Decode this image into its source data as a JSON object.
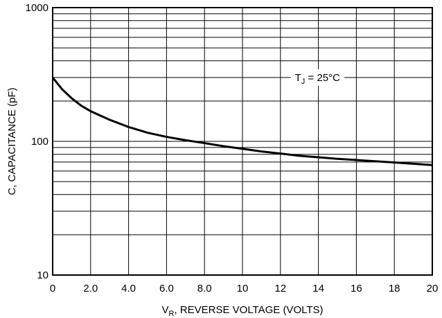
{
  "chart_data": {
    "type": "line",
    "title": "",
    "xlabel_main": "V",
    "xlabel_sub": "R",
    "xlabel_rest": ", REVERSE VOLTAGE (VOLTS)",
    "ylabel": "C, CAPACITANCE (pF)",
    "xlim": [
      0,
      20
    ],
    "ylim": [
      10,
      1000
    ],
    "yscale": "log",
    "grid": true,
    "x_ticks": [
      0,
      2,
      4,
      6,
      8,
      10,
      12,
      14,
      16,
      18,
      20
    ],
    "x_tick_labels": [
      "0",
      "2.0",
      "4.0",
      "6.0",
      "8.0",
      "10",
      "12",
      "14",
      "16",
      "18",
      "20"
    ],
    "y_tick_labels": [
      {
        "value": 10,
        "label": "10"
      },
      {
        "value": 100,
        "label": "100"
      },
      {
        "value": 1000,
        "label": "1000"
      }
    ],
    "annotation": {
      "main": "T",
      "sub": "J",
      "rest": " = 25°C",
      "x": 14,
      "y": 300
    },
    "series": [
      {
        "x": [
          0,
          0.5,
          1,
          1.5,
          2,
          3,
          4,
          5,
          6,
          7,
          8,
          9,
          10,
          11,
          12,
          13,
          14,
          15,
          16,
          17,
          18,
          19,
          20
        ],
        "values": [
          300,
          245,
          210,
          185,
          168,
          145,
          128,
          116,
          108,
          102,
          97,
          92,
          88,
          84,
          81,
          78,
          76,
          74,
          72.5,
          71,
          69.5,
          68,
          66.5
        ]
      }
    ]
  }
}
